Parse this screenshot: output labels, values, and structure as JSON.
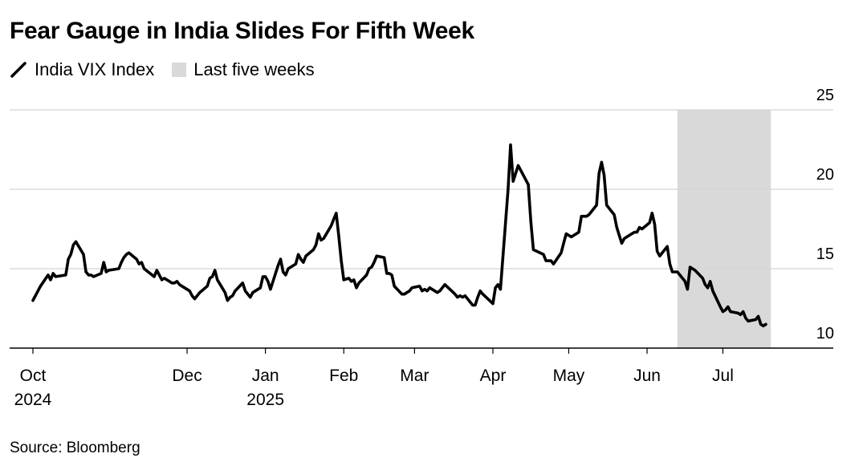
{
  "chart_data": {
    "type": "line",
    "title": "Fear Gauge in India Slides For Fifth Week",
    "series": [
      {
        "name": "India VIX Index",
        "x": [
          "2024-10-01",
          "2024-10-03",
          "2024-10-04",
          "2024-10-07",
          "2024-10-08",
          "2024-10-09",
          "2024-10-10",
          "2024-10-14",
          "2024-10-15",
          "2024-10-16",
          "2024-10-17",
          "2024-10-18",
          "2024-10-21",
          "2024-10-22",
          "2024-10-23",
          "2024-10-24",
          "2024-10-25",
          "2024-10-28",
          "2024-10-29",
          "2024-10-30",
          "2024-10-31",
          "2024-11-04",
          "2024-11-05",
          "2024-11-06",
          "2024-11-07",
          "2024-11-08",
          "2024-11-11",
          "2024-11-12",
          "2024-11-13",
          "2024-11-14",
          "2024-11-18",
          "2024-11-19",
          "2024-11-21",
          "2024-11-22",
          "2024-11-25",
          "2024-11-26",
          "2024-11-27",
          "2024-11-28",
          "2024-11-29",
          "2024-12-02",
          "2024-12-03",
          "2024-12-04",
          "2024-12-05",
          "2024-12-06",
          "2024-12-09",
          "2024-12-10",
          "2024-12-11",
          "2024-12-12",
          "2024-12-13",
          "2024-12-16",
          "2024-12-17",
          "2024-12-18",
          "2024-12-19",
          "2024-12-20",
          "2024-12-23",
          "2024-12-24",
          "2024-12-26",
          "2024-12-27",
          "2024-12-30",
          "2024-12-31",
          "2025-01-01",
          "2025-01-02",
          "2025-01-03",
          "2025-01-06",
          "2025-01-07",
          "2025-01-08",
          "2025-01-09",
          "2025-01-10",
          "2025-01-13",
          "2025-01-14",
          "2025-01-15",
          "2025-01-16",
          "2025-01-17",
          "2025-01-20",
          "2025-01-21",
          "2025-01-22",
          "2025-01-23",
          "2025-01-24",
          "2025-01-27",
          "2025-01-28",
          "2025-01-29",
          "2025-01-30",
          "2025-01-31",
          "2025-02-01",
          "2025-02-03",
          "2025-02-04",
          "2025-02-05",
          "2025-02-06",
          "2025-02-07",
          "2025-02-10",
          "2025-02-11",
          "2025-02-12",
          "2025-02-13",
          "2025-02-14",
          "2025-02-17",
          "2025-02-18",
          "2025-02-19",
          "2025-02-20",
          "2025-02-21",
          "2025-02-24",
          "2025-02-25",
          "2025-02-27",
          "2025-02-28",
          "2025-03-03",
          "2025-03-04",
          "2025-03-05",
          "2025-03-06",
          "2025-03-07",
          "2025-03-10",
          "2025-03-11",
          "2025-03-12",
          "2025-03-13",
          "2025-03-17",
          "2025-03-18",
          "2025-03-19",
          "2025-03-20",
          "2025-03-21",
          "2025-03-24",
          "2025-03-25",
          "2025-03-26",
          "2025-03-27",
          "2025-03-28",
          "2025-04-01",
          "2025-04-02",
          "2025-04-03",
          "2025-04-04",
          "2025-04-07",
          "2025-04-08",
          "2025-04-09",
          "2025-04-11",
          "2025-04-15",
          "2025-04-16",
          "2025-04-17",
          "2025-04-21",
          "2025-04-22",
          "2025-04-23",
          "2025-04-24",
          "2025-04-25",
          "2025-04-28",
          "2025-04-29",
          "2025-04-30",
          "2025-05-02",
          "2025-05-05",
          "2025-05-06",
          "2025-05-07",
          "2025-05-08",
          "2025-05-09",
          "2025-05-12",
          "2025-05-13",
          "2025-05-14",
          "2025-05-15",
          "2025-05-16",
          "2025-05-19",
          "2025-05-20",
          "2025-05-21",
          "2025-05-22",
          "2025-05-23",
          "2025-05-26",
          "2025-05-27",
          "2025-05-28",
          "2025-05-29",
          "2025-05-30",
          "2025-06-02",
          "2025-06-03",
          "2025-06-04",
          "2025-06-05",
          "2025-06-06",
          "2025-06-09",
          "2025-06-10",
          "2025-06-11",
          "2025-06-12",
          "2025-06-13",
          "2025-06-16",
          "2025-06-17",
          "2025-06-18",
          "2025-06-19",
          "2025-06-20",
          "2025-06-23",
          "2025-06-24",
          "2025-06-25",
          "2025-06-26",
          "2025-06-27",
          "2025-06-30",
          "2025-07-01",
          "2025-07-02",
          "2025-07-03",
          "2025-07-04",
          "2025-07-07",
          "2025-07-08",
          "2025-07-09",
          "2025-07-10",
          "2025-07-11",
          "2025-07-14",
          "2025-07-15",
          "2025-07-16",
          "2025-07-17",
          "2025-07-18"
        ],
        "y": [
          13.0,
          13.6,
          13.9,
          14.6,
          14.3,
          14.7,
          14.5,
          14.6,
          15.6,
          15.9,
          16.5,
          16.7,
          15.9,
          14.8,
          14.6,
          14.6,
          14.5,
          14.7,
          15.4,
          14.8,
          14.9,
          15.0,
          15.4,
          15.7,
          15.9,
          16.0,
          15.6,
          15.3,
          15.4,
          15.0,
          14.5,
          14.9,
          14.3,
          14.4,
          14.1,
          14.1,
          14.2,
          14.0,
          13.9,
          13.6,
          13.3,
          13.1,
          13.3,
          13.5,
          13.9,
          14.4,
          14.5,
          14.9,
          14.3,
          13.5,
          13.0,
          13.2,
          13.3,
          13.6,
          14.1,
          13.6,
          13.2,
          13.5,
          13.8,
          14.5,
          14.5,
          14.2,
          13.7,
          15.2,
          15.6,
          14.8,
          14.6,
          15.0,
          15.3,
          15.9,
          15.6,
          15.4,
          15.8,
          16.2,
          16.5,
          17.2,
          16.8,
          16.9,
          17.7,
          18.1,
          18.5,
          17.1,
          15.5,
          14.3,
          14.4,
          14.2,
          14.3,
          13.8,
          14.1,
          14.6,
          15.0,
          15.1,
          15.4,
          15.8,
          15.7,
          14.7,
          14.7,
          14.6,
          13.9,
          13.4,
          13.4,
          13.6,
          13.8,
          13.9,
          13.6,
          13.7,
          13.6,
          13.8,
          13.5,
          13.6,
          13.8,
          14.0,
          13.4,
          13.2,
          13.3,
          13.2,
          13.3,
          12.7,
          12.7,
          13.2,
          13.6,
          13.4,
          12.8,
          13.8,
          14.0,
          13.7,
          20.0,
          22.8,
          20.5,
          21.5,
          20.3,
          18.0,
          16.2,
          15.9,
          15.5,
          15.5,
          15.5,
          15.3,
          16.0,
          16.6,
          17.2,
          17.0,
          17.3,
          18.3,
          18.3,
          18.3,
          18.4,
          19.0,
          21.0,
          21.7,
          20.9,
          19.0,
          18.4,
          17.6,
          17.1,
          16.6,
          16.9,
          17.2,
          17.3,
          17.3,
          17.6,
          17.5,
          17.9,
          18.5,
          17.8,
          16.1,
          15.8,
          16.4,
          15.3,
          14.8,
          14.8,
          14.8,
          14.2,
          13.7,
          15.1,
          15.0,
          14.9,
          14.4,
          14.0,
          13.8,
          14.2,
          13.6,
          12.6,
          12.3,
          12.4,
          12.6,
          12.3,
          12.2,
          12.1,
          12.3,
          11.9,
          11.7,
          11.8,
          12.0,
          11.5,
          11.4,
          11.5
        ],
        "color": "#000000"
      }
    ],
    "x_ticks": [
      {
        "date": "2024-10-01",
        "label": "Oct",
        "label2": "2024"
      },
      {
        "date": "2024-12-01",
        "label": "Dec"
      },
      {
        "date": "2025-01-01",
        "label": "Jan",
        "label2": "2025"
      },
      {
        "date": "2025-02-01",
        "label": "Feb"
      },
      {
        "date": "2025-03-01",
        "label": "Mar"
      },
      {
        "date": "2025-04-01",
        "label": "Apr"
      },
      {
        "date": "2025-05-01",
        "label": "May"
      },
      {
        "date": "2025-06-01",
        "label": "Jun"
      },
      {
        "date": "2025-07-01",
        "label": "Jul"
      }
    ],
    "yticks": [
      10,
      15,
      20,
      25
    ],
    "ylim": [
      10,
      25
    ],
    "xlim": [
      "2024-10-01",
      "2025-08-15"
    ],
    "highlight": {
      "label": "Last five weeks",
      "start": "2025-06-13",
      "end": "2025-07-20",
      "color": "#d9d9d9"
    },
    "grid": true,
    "legend_position": "top-left",
    "source": "Source: Bloomberg"
  }
}
